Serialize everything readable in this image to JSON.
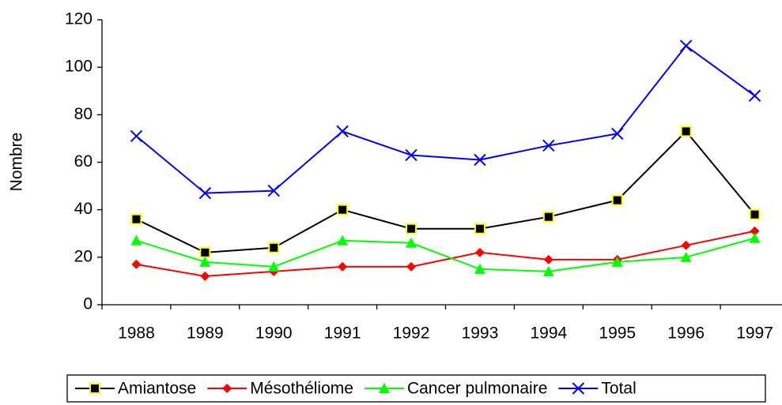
{
  "chart_data": {
    "type": "line",
    "y_label": "Nombre",
    "categories": [
      "1988",
      "1989",
      "1990",
      "1991",
      "1992",
      "1993",
      "1994",
      "1995",
      "1996",
      "1997"
    ],
    "series": [
      {
        "name": "Amiantose",
        "color": "#000000",
        "marker": "square",
        "marker_edge": "#ffff00",
        "values": [
          36,
          22,
          24,
          40,
          32,
          32,
          37,
          44,
          73,
          38
        ]
      },
      {
        "name": "Mésothéliome",
        "color": "#ff0000",
        "marker": "diamond",
        "values": [
          17,
          12,
          14,
          16,
          16,
          22,
          19,
          19,
          25,
          31
        ]
      },
      {
        "name": "Cancer pulmonaire",
        "color": "#00ff00",
        "marker": "triangle",
        "values": [
          27,
          18,
          16,
          27,
          26,
          15,
          14,
          18,
          20,
          28
        ]
      },
      {
        "name": "Total",
        "color": "#0000ff",
        "marker": "x",
        "values": [
          71,
          47,
          48,
          73,
          63,
          61,
          67,
          72,
          109,
          88
        ]
      }
    ],
    "ylim": [
      0,
      120
    ],
    "yticks": [
      0,
      20,
      40,
      60,
      80,
      100,
      120
    ],
    "grid": false,
    "legend": "bottom"
  }
}
